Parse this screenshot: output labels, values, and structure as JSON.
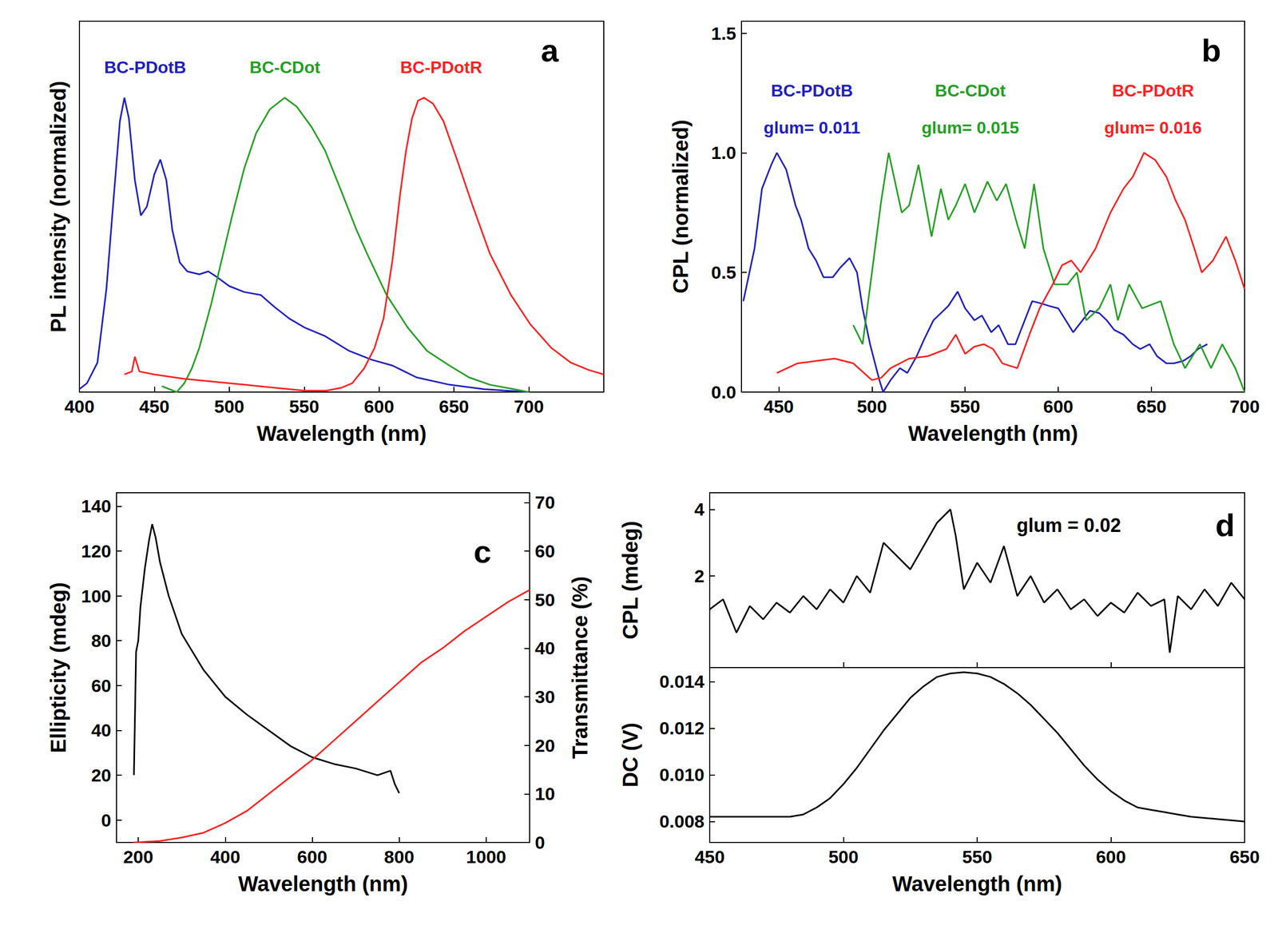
{
  "chart_data": [
    {
      "type": "line",
      "panel_label": "a",
      "x_label": "Wavelength (nm)",
      "y_label": "PL intensity (normalized)",
      "xlim": [
        400,
        750
      ],
      "xticks": [
        400,
        450,
        500,
        550,
        600,
        650,
        700
      ],
      "ylim": [
        0,
        1.26
      ],
      "tick_labels": "x",
      "grid": false,
      "series": [
        {
          "name": "BC-PDotB",
          "color": "#2020c0",
          "x": [
            400,
            405,
            412,
            418,
            423,
            427,
            430,
            433,
            437,
            441,
            445,
            450,
            454,
            458,
            462,
            467,
            472,
            480,
            486,
            492,
            500,
            510,
            521,
            530,
            540,
            550,
            564,
            580,
            595,
            609,
            625,
            647,
            670,
            700
          ],
          "values": [
            0.01,
            0.03,
            0.1,
            0.35,
            0.67,
            0.92,
            1.0,
            0.93,
            0.72,
            0.6,
            0.63,
            0.74,
            0.79,
            0.72,
            0.55,
            0.44,
            0.41,
            0.4,
            0.41,
            0.39,
            0.36,
            0.34,
            0.33,
            0.29,
            0.25,
            0.22,
            0.19,
            0.14,
            0.11,
            0.09,
            0.05,
            0.025,
            0.01,
            0
          ]
        },
        {
          "name": "BC-CDot",
          "color": "#22a022",
          "x": [
            455,
            465,
            470,
            475,
            480,
            488,
            495,
            502,
            510,
            518,
            527,
            537,
            545,
            555,
            564,
            575,
            585,
            592,
            605,
            619,
            632,
            647,
            660,
            674,
            690,
            700
          ],
          "values": [
            0.02,
            0.0,
            0.03,
            0.08,
            0.15,
            0.3,
            0.45,
            0.6,
            0.76,
            0.88,
            0.96,
            1.0,
            0.97,
            0.9,
            0.82,
            0.68,
            0.55,
            0.47,
            0.33,
            0.22,
            0.14,
            0.09,
            0.05,
            0.025,
            0.01,
            0
          ]
        },
        {
          "name": "BC-PDotR",
          "color": "#ff2020",
          "x": [
            430,
            435,
            437,
            440,
            450,
            470,
            490,
            510,
            530,
            550,
            565,
            575,
            582,
            590,
            597,
            603,
            609,
            614,
            618,
            622,
            626,
            630,
            636,
            643,
            652,
            662,
            674,
            688,
            701,
            715,
            728,
            740,
            750
          ],
          "values": [
            0.06,
            0.07,
            0.12,
            0.07,
            0.06,
            0.045,
            0.035,
            0.025,
            0.015,
            0.005,
            0.005,
            0.015,
            0.03,
            0.08,
            0.15,
            0.25,
            0.45,
            0.67,
            0.82,
            0.93,
            0.99,
            1.0,
            0.98,
            0.92,
            0.79,
            0.64,
            0.47,
            0.33,
            0.23,
            0.15,
            0.1,
            0.075,
            0.06
          ]
        }
      ]
    },
    {
      "type": "line",
      "panel_label": "b",
      "x_label": "Wavelength (nm)",
      "y_label": "CPL (normalized)",
      "xlim": [
        430,
        700
      ],
      "xticks": [
        450,
        500,
        550,
        600,
        650,
        700
      ],
      "ylim": [
        0,
        1.55
      ],
      "yticks": [
        {
          "value": 0,
          "label": "0.0"
        },
        0.5,
        {
          "value": 1,
          "label": "1.0"
        },
        1.5
      ],
      "grid": false,
      "series": [
        {
          "name": "BC-PDotB",
          "annotation": "glum= 0.011",
          "color": "#2020c0",
          "x": [
            431,
            437,
            441,
            446,
            449,
            454,
            459,
            462,
            466,
            470,
            474,
            479,
            483,
            488,
            492,
            495,
            499,
            504,
            506,
            510,
            515,
            519,
            524,
            528,
            533,
            537,
            541,
            546,
            550,
            555,
            559,
            564,
            568,
            573,
            577,
            582,
            586,
            591,
            595,
            600,
            604,
            608,
            613,
            617,
            622,
            626,
            630,
            635,
            640,
            644,
            649,
            653,
            658,
            662,
            667,
            671,
            675,
            680
          ],
          "values": [
            0.38,
            0.6,
            0.85,
            0.95,
            1.0,
            0.93,
            0.78,
            0.72,
            0.6,
            0.55,
            0.48,
            0.48,
            0.52,
            0.56,
            0.5,
            0.35,
            0.2,
            0.05,
            0.0,
            0.05,
            0.1,
            0.08,
            0.15,
            0.22,
            0.3,
            0.33,
            0.36,
            0.42,
            0.35,
            0.3,
            0.32,
            0.25,
            0.28,
            0.2,
            0.2,
            0.3,
            0.38,
            0.37,
            0.36,
            0.35,
            0.3,
            0.25,
            0.3,
            0.34,
            0.33,
            0.3,
            0.26,
            0.24,
            0.2,
            0.18,
            0.2,
            0.15,
            0.12,
            0.12,
            0.13,
            0.15,
            0.18,
            0.2
          ]
        },
        {
          "name": "BC-CDot",
          "annotation": "glum= 0.015",
          "color": "#22a022",
          "x": [
            490,
            495,
            500,
            505,
            509,
            516,
            520,
            525,
            532,
            537,
            541,
            545,
            550,
            555,
            562,
            567,
            572,
            578,
            582,
            587,
            592,
            598,
            605,
            610,
            615,
            622,
            628,
            632,
            638,
            645,
            655,
            662,
            668,
            676,
            682,
            688,
            695,
            700
          ],
          "values": [
            0.28,
            0.2,
            0.5,
            0.8,
            1.0,
            0.75,
            0.78,
            0.95,
            0.65,
            0.85,
            0.72,
            0.78,
            0.87,
            0.75,
            0.88,
            0.8,
            0.87,
            0.7,
            0.6,
            0.87,
            0.6,
            0.45,
            0.45,
            0.5,
            0.3,
            0.35,
            0.45,
            0.3,
            0.45,
            0.35,
            0.38,
            0.2,
            0.1,
            0.2,
            0.1,
            0.2,
            0.1,
            0.0
          ]
        },
        {
          "name": "BC-PDotR",
          "annotation": "glum= 0.016",
          "color": "#ff2020",
          "x": [
            449,
            460,
            470,
            480,
            490,
            500,
            505,
            510,
            520,
            530,
            540,
            545,
            550,
            555,
            560,
            565,
            570,
            578,
            585,
            590,
            597,
            602,
            607,
            612,
            620,
            628,
            635,
            640,
            646,
            652,
            658,
            663,
            668,
            673,
            677,
            683,
            690,
            695,
            700
          ],
          "values": [
            0.08,
            0.12,
            0.13,
            0.14,
            0.12,
            0.05,
            0.06,
            0.1,
            0.14,
            0.15,
            0.18,
            0.24,
            0.16,
            0.19,
            0.2,
            0.18,
            0.12,
            0.1,
            0.25,
            0.35,
            0.45,
            0.53,
            0.55,
            0.5,
            0.6,
            0.75,
            0.85,
            0.9,
            1.0,
            0.97,
            0.9,
            0.8,
            0.72,
            0.6,
            0.5,
            0.55,
            0.65,
            0.55,
            0.43
          ]
        }
      ]
    },
    {
      "type": "line",
      "panel_label": "c",
      "x_label": "Wavelength (nm)",
      "y_label": "Ellipticity (mdeg)",
      "y2_label": "Transmittance (%)",
      "xlim": [
        150,
        1100
      ],
      "xticks": [
        200,
        400,
        600,
        800,
        1000
      ],
      "ylim": [
        -10,
        146
      ],
      "yticks": [
        0,
        20,
        40,
        60,
        80,
        100,
        120,
        140
      ],
      "y2lim": [
        0,
        72
      ],
      "y2ticks": [
        0,
        10,
        20,
        30,
        40,
        50,
        60,
        70
      ],
      "grid": false,
      "series": [
        {
          "color": "#000000",
          "x": [
            190,
            195,
            200,
            205,
            215,
            225,
            232,
            240,
            250,
            270,
            300,
            350,
            400,
            450,
            500,
            550,
            600,
            650,
            700,
            750,
            780,
            790,
            800
          ],
          "values": [
            20,
            75,
            80,
            95,
            112,
            125,
            132,
            126,
            115,
            100,
            83,
            67,
            55,
            47,
            40,
            33,
            28,
            25,
            23,
            20,
            22,
            16,
            12
          ]
        },
        {
          "color": "#ff2020",
          "axis": "y2",
          "x": [
            190,
            250,
            300,
            350,
            400,
            450,
            500,
            550,
            600,
            650,
            700,
            750,
            800,
            850,
            900,
            950,
            1000,
            1050,
            1100
          ],
          "values": [
            0,
            0.3,
            1,
            2,
            4,
            6.5,
            10,
            13.5,
            17,
            21,
            25,
            29,
            33,
            37,
            40,
            43.5,
            46.5,
            49.5,
            52
          ]
        }
      ]
    },
    {
      "type": "line",
      "panel_label": "d",
      "y_label": "CPL (mdeg)",
      "annotations": [
        "glum = 0.02"
      ],
      "xlim": [
        450,
        650
      ],
      "xticks": [
        450,
        500,
        550,
        600,
        650
      ],
      "ylim": [
        -0.75,
        4.5
      ],
      "yticks": [
        2,
        4
      ],
      "tick_labels": "y",
      "grid": false,
      "series": [
        {
          "color": "#000000",
          "x": [
            450,
            455,
            460,
            465,
            470,
            475,
            480,
            485,
            490,
            495,
            500,
            505,
            510,
            515,
            520,
            525,
            530,
            535,
            540,
            542,
            545,
            550,
            555,
            560,
            565,
            570,
            575,
            580,
            585,
            590,
            595,
            600,
            605,
            610,
            615,
            620,
            622,
            625,
            630,
            635,
            640,
            645,
            650
          ],
          "values": [
            1.0,
            1.3,
            0.3,
            1.1,
            0.7,
            1.2,
            0.9,
            1.4,
            1.0,
            1.6,
            1.2,
            2.0,
            1.5,
            3.0,
            2.6,
            2.2,
            2.9,
            3.6,
            4.0,
            3.2,
            1.6,
            2.4,
            1.8,
            2.9,
            1.4,
            2.0,
            1.2,
            1.6,
            1.0,
            1.3,
            0.8,
            1.2,
            0.9,
            1.5,
            1.1,
            1.3,
            -0.3,
            1.4,
            1.0,
            1.6,
            1.1,
            1.8,
            1.3
          ]
        }
      ]
    },
    {
      "type": "line",
      "x_label": "Wavelength (nm)",
      "y_label": "DC (V)",
      "xlim": [
        450,
        650
      ],
      "xticks": [
        450,
        500,
        550,
        600,
        650
      ],
      "ylim": [
        0.0071,
        0.0146
      ],
      "yticks": [
        0.008,
        {
          "value": 0.01,
          "label": "0.010"
        },
        0.012,
        0.014
      ],
      "grid": false,
      "series": [
        {
          "color": "#000000",
          "x": [
            450,
            480,
            485,
            490,
            495,
            500,
            505,
            510,
            515,
            520,
            525,
            530,
            535,
            540,
            545,
            550,
            555,
            560,
            565,
            570,
            575,
            580,
            585,
            590,
            595,
            600,
            605,
            610,
            615,
            620,
            625,
            630,
            640,
            650
          ],
          "values": [
            0.0082,
            0.0082,
            0.0083,
            0.0086,
            0.009,
            0.0096,
            0.0103,
            0.0111,
            0.0119,
            0.0126,
            0.0133,
            0.0138,
            0.0142,
            0.01435,
            0.0144,
            0.01435,
            0.0142,
            0.0139,
            0.0135,
            0.013,
            0.0124,
            0.0118,
            0.0111,
            0.0104,
            0.0098,
            0.0093,
            0.0089,
            0.0086,
            0.0085,
            0.0084,
            0.0083,
            0.0082,
            0.0081,
            0.008
          ]
        }
      ]
    }
  ]
}
